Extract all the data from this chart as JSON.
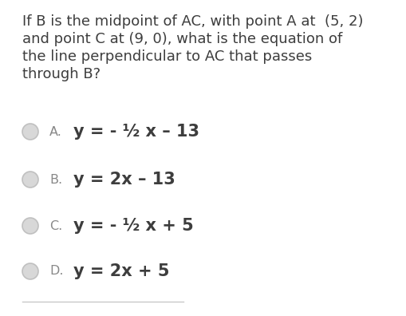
{
  "question_lines": [
    "If B is the midpoint of AC, with point A at  (5, 2)",
    "and point C at (9, 0), what is the equation of",
    "the line perpendicular to AC that passes",
    "through B?"
  ],
  "options": [
    {
      "label": "A.",
      "equation": "y = - ½ x – 13"
    },
    {
      "label": "B.",
      "equation": "y = 2x – 13"
    },
    {
      "label": "C.",
      "equation": "y = - ½ x + 5"
    },
    {
      "label": "D.",
      "equation": "y = 2x + 5"
    }
  ],
  "background_color": "#ffffff",
  "text_color": "#3d3d3d",
  "option_label_color": "#888888",
  "circle_edge_color": "#c0c0c0",
  "circle_fill_color": "#d8d8d8",
  "question_fontsize": 13.0,
  "option_label_fontsize": 11.5,
  "option_eq_fontsize": 15.0,
  "bottom_line_color": "#c8c8c8",
  "fig_width": 5.1,
  "fig_height": 3.96,
  "dpi": 100
}
